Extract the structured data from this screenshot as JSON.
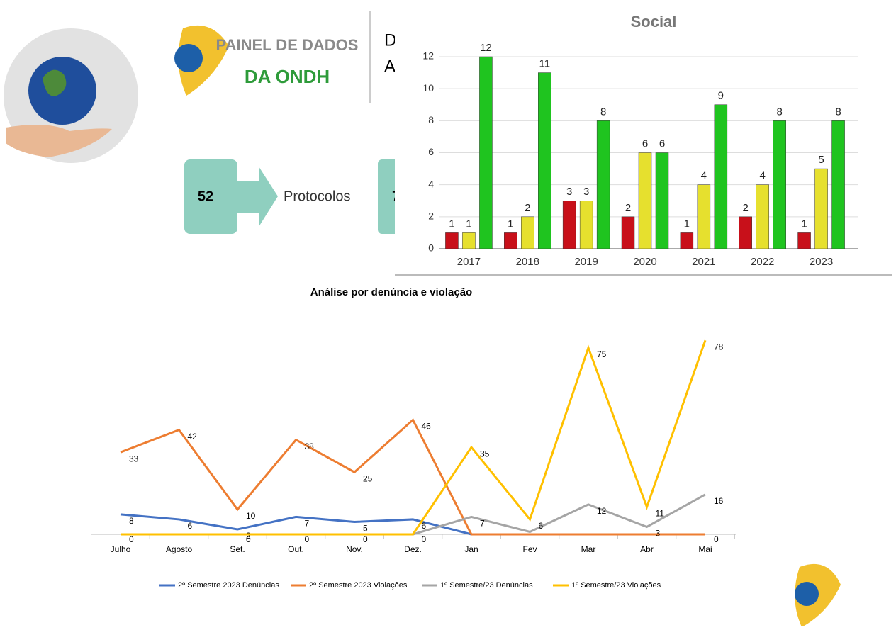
{
  "header": {
    "title_line1": "PAINEL DE DADOS",
    "title_line2": "DA ONDH",
    "cut_text": [
      "D",
      "A"
    ]
  },
  "protocols": {
    "count": 52,
    "label": "Protocolos",
    "next_cut": "7"
  },
  "chart_data": [
    {
      "type": "bar",
      "title": "Social",
      "categories": [
        "2017",
        "2018",
        "2019",
        "2020",
        "2021",
        "2022",
        "2023"
      ],
      "series": [
        {
          "color": "#c8101a",
          "values": [
            1,
            1,
            3,
            2,
            1,
            2,
            1
          ]
        },
        {
          "color": "#e6e02e",
          "values": [
            1,
            2,
            3,
            6,
            4,
            4,
            5
          ]
        },
        {
          "color": "#1fc41f",
          "values": [
            12,
            11,
            8,
            6,
            9,
            8,
            8
          ]
        }
      ],
      "ylim": [
        0,
        12
      ],
      "yticks": [
        0,
        2,
        4,
        6,
        8,
        10,
        12
      ],
      "grid": true
    },
    {
      "type": "line",
      "title": "Análise por denúncia e violação",
      "categories": [
        "Julho",
        "Agosto",
        "Set.",
        "Out.",
        "Nov.",
        "Dez.",
        "Jan",
        "Fev",
        "Mar",
        "Abr",
        "Mai"
      ],
      "series": [
        {
          "name": "2º Semestre 2023 Denúncias",
          "color": "#4472c4",
          "values": [
            8,
            6,
            2,
            7,
            5,
            6,
            0,
            null,
            null,
            null,
            null
          ],
          "value_labels": [
            "8",
            "6",
            "2",
            "7",
            "5",
            "6",
            null,
            null,
            null,
            null,
            null
          ]
        },
        {
          "name": "2º Semestre 2023 Violações",
          "color": "#ed7d31",
          "values": [
            33,
            42,
            10,
            38,
            25,
            46,
            0,
            0,
            0,
            0,
            0
          ],
          "value_labels": [
            "33",
            "42",
            "10",
            "38",
            "25",
            "46",
            null,
            null,
            null,
            null,
            "0"
          ]
        },
        {
          "name": "1º Semestre/23 Denúncias",
          "color": "#a5a5a5",
          "values": [
            null,
            null,
            null,
            null,
            null,
            0,
            7,
            1,
            12,
            3,
            16
          ],
          "value_labels": [
            null,
            null,
            null,
            null,
            null,
            null,
            "7",
            null,
            "12",
            "3",
            "16"
          ]
        },
        {
          "name": "1º Semestre/23 Violações",
          "color": "#ffc000",
          "values": [
            0,
            0,
            0,
            0,
            0,
            0,
            35,
            6,
            75,
            11,
            78
          ],
          "value_labels": [
            "0",
            null,
            "0",
            "0",
            "0",
            "0",
            "35",
            "6",
            "75",
            "11",
            "78"
          ]
        }
      ]
    }
  ]
}
